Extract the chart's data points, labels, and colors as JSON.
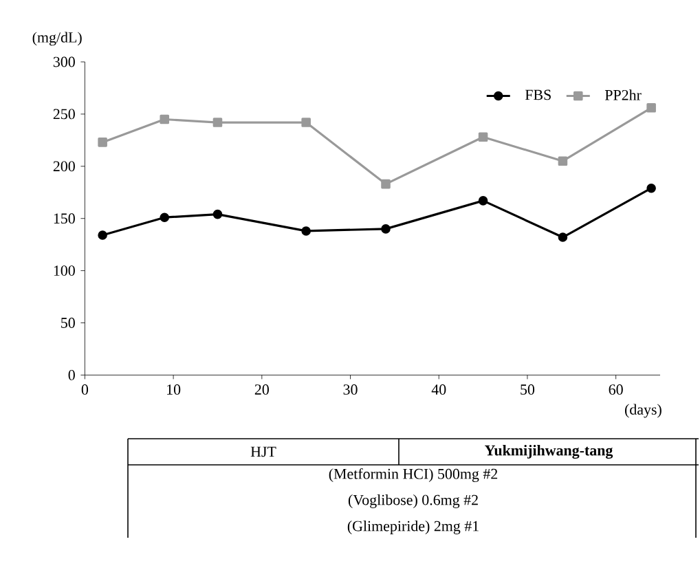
{
  "chart_data": {
    "type": "line",
    "xlabel": "(days)",
    "ylabel": "(mg/dL)",
    "x": [
      2,
      9,
      15,
      25,
      34,
      45,
      54,
      64
    ],
    "series": [
      {
        "name": "FBS",
        "color": "#000000",
        "marker": "circle",
        "values": [
          134,
          151,
          154,
          138,
          140,
          167,
          132,
          179
        ]
      },
      {
        "name": "PP2hr",
        "color": "#999999",
        "marker": "square",
        "values": [
          223,
          245,
          242,
          242,
          183,
          228,
          205,
          256
        ]
      }
    ],
    "xlim": [
      0,
      65
    ],
    "ylim": [
      0,
      300
    ],
    "xticks": [
      0,
      10,
      20,
      30,
      40,
      50,
      60
    ],
    "yticks": [
      0,
      50,
      100,
      150,
      200,
      250,
      300
    ],
    "legend": "top right",
    "line_style": "solid",
    "grid": false,
    "annotations": [
      "HJT",
      "Yukmijihwang-tang",
      "(Metformin HCI) 500mg #2",
      "(Voglibose) 0.6mg #2",
      "(Glimepiride) 2mg #1"
    ]
  }
}
